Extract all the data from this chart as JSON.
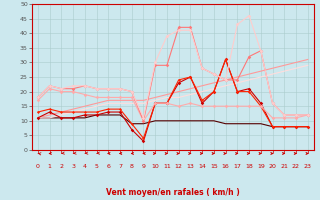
{
  "xlabel": "Vent moyen/en rafales ( km/h )",
  "bg_color": "#cce8ee",
  "grid_color": "#aacccc",
  "xlim": [
    -0.5,
    23.5
  ],
  "ylim": [
    0,
    50
  ],
  "yticks": [
    0,
    5,
    10,
    15,
    20,
    25,
    30,
    35,
    40,
    45,
    50
  ],
  "xticks": [
    0,
    1,
    2,
    3,
    4,
    5,
    6,
    7,
    8,
    9,
    10,
    11,
    12,
    13,
    14,
    15,
    16,
    17,
    18,
    19,
    20,
    21,
    22,
    23
  ],
  "series": [
    {
      "x": [
        0,
        1,
        2,
        3,
        4,
        5,
        6,
        7,
        8,
        9,
        10,
        11,
        12,
        13,
        14,
        15,
        16,
        17,
        18,
        19,
        20,
        21,
        22,
        23
      ],
      "y": [
        11,
        13,
        11,
        11,
        12,
        12,
        13,
        13,
        7,
        3,
        16,
        16,
        23,
        25,
        16,
        20,
        31,
        20,
        21,
        16,
        8,
        8,
        8,
        8
      ],
      "color": "#cc0000",
      "lw": 0.8,
      "marker": "D",
      "ms": 1.8
    },
    {
      "x": [
        0,
        1,
        2,
        3,
        4,
        5,
        6,
        7,
        8,
        9,
        10,
        11,
        12,
        13,
        14,
        15,
        16,
        17,
        18,
        19,
        20,
        21,
        22,
        23
      ],
      "y": [
        11,
        11,
        11,
        11,
        11,
        12,
        12,
        12,
        9,
        9,
        10,
        10,
        10,
        10,
        10,
        10,
        9,
        9,
        9,
        9,
        8,
        8,
        8,
        8
      ],
      "color": "#550000",
      "lw": 0.8,
      "marker": null,
      "ms": 0
    },
    {
      "x": [
        0,
        1,
        2,
        3,
        4,
        5,
        6,
        7,
        8,
        9,
        10,
        11,
        12,
        13,
        14,
        15,
        16,
        17,
        18,
        19,
        20,
        21,
        22,
        23
      ],
      "y": [
        13,
        14,
        13,
        13,
        13,
        13,
        14,
        14,
        9,
        4,
        16,
        16,
        24,
        25,
        17,
        20,
        31,
        20,
        20,
        15,
        8,
        8,
        8,
        8
      ],
      "color": "#ff2200",
      "lw": 0.8,
      "marker": "D",
      "ms": 1.5
    },
    {
      "x": [
        0,
        1,
        2,
        3,
        4,
        5,
        6,
        7,
        8,
        9,
        10,
        11,
        12,
        13,
        14,
        15,
        16,
        17,
        18,
        19,
        20,
        21,
        22,
        23
      ],
      "y": [
        17,
        21,
        20,
        20,
        19,
        18,
        18,
        18,
        18,
        10,
        16,
        16,
        15,
        16,
        15,
        15,
        15,
        15,
        15,
        15,
        11,
        11,
        11,
        12
      ],
      "color": "#ffaaaa",
      "lw": 0.8,
      "marker": "D",
      "ms": 1.8
    },
    {
      "x": [
        0,
        1,
        2,
        3,
        4,
        5,
        6,
        7,
        8,
        9,
        10,
        11,
        12,
        13,
        14,
        15,
        16,
        17,
        18,
        19,
        20,
        21,
        22,
        23
      ],
      "y": [
        18,
        22,
        21,
        21,
        22,
        21,
        21,
        21,
        20,
        10,
        29,
        29,
        42,
        42,
        28,
        26,
        24,
        24,
        32,
        34,
        16,
        12,
        12,
        12
      ],
      "color": "#ff7777",
      "lw": 0.8,
      "marker": "D",
      "ms": 1.8
    },
    {
      "x": [
        0,
        1,
        2,
        3,
        4,
        5,
        6,
        7,
        8,
        9,
        10,
        11,
        12,
        13,
        14,
        15,
        16,
        17,
        18,
        19,
        20,
        21,
        22,
        23
      ],
      "y": [
        18,
        22,
        21,
        22,
        22,
        21,
        21,
        21,
        20,
        11,
        30,
        39,
        41,
        41,
        28,
        26,
        24,
        43,
        46,
        34,
        16,
        12,
        12,
        12
      ],
      "color": "#ffcccc",
      "lw": 0.8,
      "marker": "D",
      "ms": 1.8
    },
    {
      "x": [
        0,
        1,
        2,
        3,
        4,
        5,
        6,
        7,
        8,
        9,
        10,
        11,
        12,
        13,
        14,
        15,
        16,
        17,
        18,
        19,
        20,
        21,
        22,
        23
      ],
      "y": [
        11,
        12,
        13,
        14,
        15,
        16,
        17,
        17,
        17,
        17,
        18,
        19,
        20,
        21,
        22,
        23,
        24,
        25,
        26,
        27,
        28,
        29,
        30,
        31
      ],
      "color": "#ff9999",
      "lw": 0.8,
      "marker": null,
      "ms": 0
    },
    {
      "x": [
        0,
        1,
        2,
        3,
        4,
        5,
        6,
        7,
        8,
        9,
        10,
        11,
        12,
        13,
        14,
        15,
        16,
        17,
        18,
        19,
        20,
        21,
        22,
        23
      ],
      "y": [
        11,
        11,
        12,
        13,
        14,
        15,
        16,
        16,
        16,
        16,
        17,
        18,
        18,
        19,
        20,
        21,
        22,
        23,
        24,
        25,
        26,
        27,
        28,
        29
      ],
      "color": "#ffdddd",
      "lw": 0.8,
      "marker": null,
      "ms": 0
    }
  ],
  "wind_dirs": [
    225,
    270,
    315,
    315,
    315,
    315,
    270,
    270,
    270,
    270,
    90,
    90,
    90,
    90,
    90,
    90,
    90,
    90,
    90,
    90,
    90,
    90,
    90,
    90
  ]
}
